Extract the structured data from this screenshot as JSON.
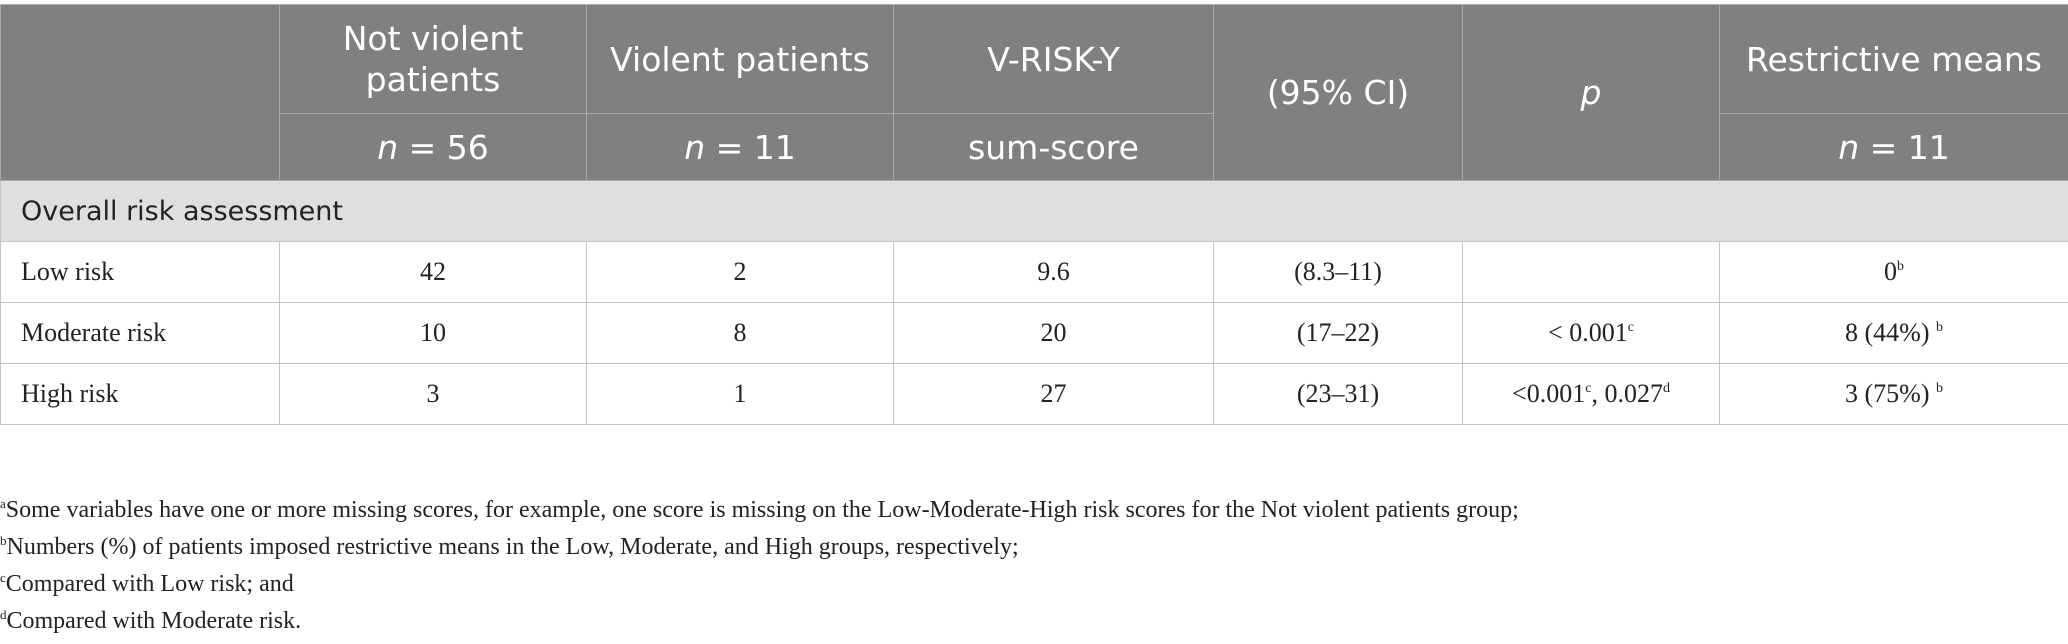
{
  "header": {
    "col1_top": "Not violent patients",
    "col2_top": "Violent patients",
    "col3_top": "V-RISK-Y",
    "col4": "(95% CI)",
    "col5": "p",
    "col6_top": "Restrictive means",
    "col1_n_italic": "n",
    "col1_n_value": " = 56",
    "col2_n_italic": "n",
    "col2_n_value": " = 11",
    "col3_bottom": "sum-score",
    "col6_n_italic": "n",
    "col6_n_value": " = 11"
  },
  "section_label": "Overall risk assessment",
  "rows": [
    {
      "label": "Low risk",
      "not_violent": "42",
      "violent": "2",
      "score": "9.6",
      "ci": "(8.3–11)",
      "p": "",
      "p_sup": "",
      "p2": "",
      "p2_sup": "",
      "restrictive": "0",
      "restrictive_sup": "b"
    },
    {
      "label": "Moderate risk",
      "not_violent": "10",
      "violent": "8",
      "score": "20",
      "ci": "(17–22)",
      "p": "< 0.001",
      "p_sup": "c",
      "p2": "",
      "p2_sup": "",
      "restrictive": "8 (44%) ",
      "restrictive_sup": "b"
    },
    {
      "label": "High risk",
      "not_violent": "3",
      "violent": "1",
      "score": "27",
      "ci": "(23–31)",
      "p": "<0.001",
      "p_sup": "c",
      "p2": ", 0.027",
      "p2_sup": "d",
      "restrictive": "3 (75%) ",
      "restrictive_sup": "b"
    }
  ],
  "footnotes": [
    {
      "mark": "a",
      "text": "Some variables have one or more missing scores, for example, one score is missing on the Low-Moderate-High risk scores for the Not violent patients group;"
    },
    {
      "mark": "b",
      "text": "Numbers (%) of patients imposed restrictive means in the Low, Moderate, and High groups, respectively;"
    },
    {
      "mark": "c",
      "text": "Compared with Low risk; and"
    },
    {
      "mark": "d",
      "text": "Compared with Moderate risk."
    }
  ]
}
